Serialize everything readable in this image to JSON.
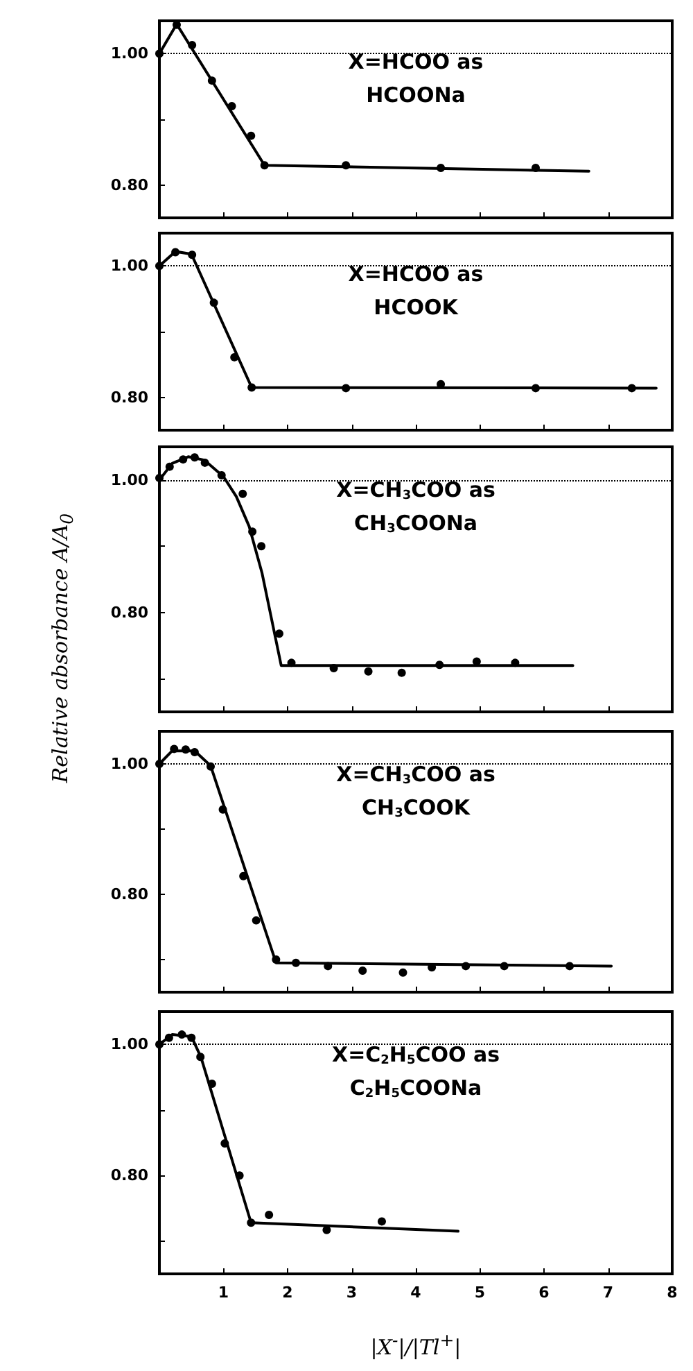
{
  "chart_data": [
    {
      "type": "scatter",
      "annotations": [
        "X=HCOO as",
        "HCOONa"
      ],
      "xlim": [
        0,
        8
      ],
      "xticks": [
        1,
        2,
        3,
        4,
        5,
        6,
        7,
        8
      ],
      "ylim": [
        0.75,
        1.05
      ],
      "yticks": [
        {
          "value": 0.8,
          "label": "0.80"
        },
        {
          "value": 0.9,
          "label": null
        },
        {
          "value": 1,
          "label": "1.00"
        }
      ],
      "tick_labels": "y",
      "ref_lines": [
        {
          "axis": "y",
          "value": 1,
          "color": "#000000",
          "line_style": "dotted"
        }
      ],
      "series": [
        {
          "color": "#000000",
          "marker": "circle",
          "x": [
            0,
            0.27,
            0.51,
            0.82,
            1.13,
            1.43,
            1.64,
            2.91,
            4.39,
            5.87
          ],
          "values": [
            1.0,
            1.044,
            1.013,
            0.959,
            0.92,
            0.875,
            0.83,
            0.83,
            0.826,
            0.826
          ]
        },
        {
          "type": "line",
          "color": "#000000",
          "marker": "none",
          "line_style": "solid",
          "x": [
            0,
            0.27,
            1.64,
            6.7
          ],
          "values": [
            1.0,
            1.045,
            0.83,
            0.821
          ]
        }
      ]
    },
    {
      "type": "scatter",
      "annotations": [
        "X=HCOO as",
        "HCOOK"
      ],
      "xlim": [
        0,
        8
      ],
      "xticks": [
        1,
        2,
        3,
        4,
        5,
        6,
        7,
        8
      ],
      "ylim": [
        0.75,
        1.05
      ],
      "yticks": [
        {
          "value": 0.8,
          "label": "0.80"
        },
        {
          "value": 0.9,
          "label": null
        },
        {
          "value": 1,
          "label": "1.00"
        }
      ],
      "tick_labels": "y",
      "ylabel": "Relative absorbance A/A$_{0}$",
      "ref_lines": [
        {
          "axis": "y",
          "value": 1,
          "color": "#000000",
          "line_style": "dotted"
        }
      ],
      "series": [
        {
          "color": "#000000",
          "marker": "circle",
          "x": [
            0,
            0.25,
            0.51,
            0.85,
            1.17,
            1.44,
            2.91,
            4.39,
            5.87,
            7.37
          ],
          "values": [
            1.0,
            1.021,
            1.017,
            0.944,
            0.861,
            0.815,
            0.814,
            0.82,
            0.814,
            0.814
          ]
        },
        {
          "type": "line",
          "color": "#000000",
          "marker": "none",
          "line_style": "solid",
          "x": [
            0,
            0.25,
            0.5,
            1.44,
            7.75
          ],
          "values": [
            1.0,
            1.022,
            1.018,
            0.815,
            0.814
          ]
        }
      ]
    },
    {
      "type": "scatter",
      "annotations": [
        "X=CH$_{3}$COO as",
        "CH$_{3}$COONa"
      ],
      "xlim": [
        0,
        8
      ],
      "xticks": [
        1,
        2,
        3,
        4,
        5,
        6,
        7,
        8
      ],
      "ylim": [
        0.65,
        1.05
      ],
      "yticks": [
        {
          "value": 0.7,
          "label": null
        },
        {
          "value": 0.8,
          "label": "0.80"
        },
        {
          "value": 0.9,
          "label": null
        },
        {
          "value": 1,
          "label": "1.00"
        }
      ],
      "tick_labels": "y",
      "ref_lines": [
        {
          "axis": "y",
          "value": 1,
          "color": "#000000",
          "line_style": "dotted"
        }
      ],
      "series": [
        {
          "color": "#000000",
          "marker": "circle",
          "x": [
            0,
            0.16,
            0.37,
            0.55,
            0.71,
            0.97,
            1.3,
            1.45,
            1.59,
            1.87,
            2.06,
            2.72,
            3.26,
            3.78,
            4.37,
            4.95,
            5.55
          ],
          "values": [
            1.003,
            1.02,
            1.031,
            1.034,
            1.026,
            1.007,
            0.979,
            0.922,
            0.9,
            0.768,
            0.724,
            0.716,
            0.711,
            0.709,
            0.721,
            0.726,
            0.724
          ]
        },
        {
          "type": "line",
          "color": "#000000",
          "marker": "none",
          "line_style": "solid",
          "x": [
            0,
            0.2,
            0.45,
            0.7,
            1.0,
            1.2,
            1.4,
            1.6,
            1.9,
            6.45
          ],
          "values": [
            1.0,
            1.025,
            1.035,
            1.03,
            1.005,
            0.975,
            0.93,
            0.86,
            0.72,
            0.72
          ]
        }
      ]
    },
    {
      "type": "scatter",
      "annotations": [
        "X=CH$_{3}$COO as",
        "CH$_{3}$COOK"
      ],
      "xlim": [
        0,
        8
      ],
      "xticks": [
        1,
        2,
        3,
        4,
        5,
        6,
        7,
        8
      ],
      "ylim": [
        0.65,
        1.05
      ],
      "yticks": [
        {
          "value": 0.7,
          "label": null
        },
        {
          "value": 0.8,
          "label": "0.80"
        },
        {
          "value": 0.9,
          "label": null
        },
        {
          "value": 1,
          "label": "1.00"
        }
      ],
      "tick_labels": "y",
      "ref_lines": [
        {
          "axis": "y",
          "value": 1,
          "color": "#000000",
          "line_style": "dotted"
        }
      ],
      "series": [
        {
          "color": "#000000",
          "marker": "circle",
          "x": [
            0,
            0.23,
            0.41,
            0.55,
            0.8,
            0.99,
            1.31,
            1.51,
            1.82,
            2.13,
            2.63,
            3.17,
            3.8,
            4.25,
            4.78,
            5.38,
            6.4
          ],
          "values": [
            1.0,
            1.023,
            1.022,
            1.018,
            0.996,
            0.93,
            0.828,
            0.76,
            0.7,
            0.695,
            0.69,
            0.683,
            0.68,
            0.688,
            0.69,
            0.69,
            0.69
          ]
        },
        {
          "type": "line",
          "color": "#000000",
          "marker": "none",
          "line_style": "solid",
          "x": [
            0,
            0.2,
            0.55,
            0.8,
            1.82,
            7.05
          ],
          "values": [
            1.0,
            1.02,
            1.02,
            0.997,
            0.695,
            0.69
          ]
        }
      ]
    },
    {
      "type": "scatter",
      "annotations": [
        "X=C$_{2}$H$_{5}$COO as",
        "C$_{2}$H$_{5}$COONa"
      ],
      "xlabel": "|X$^{-}$|/|Tl$^{+}$|",
      "xlim": [
        0,
        8
      ],
      "xticks": [
        1,
        2,
        3,
        4,
        5,
        6,
        7,
        8
      ],
      "ylim": [
        0.65,
        1.05
      ],
      "yticks": [
        {
          "value": 0.7,
          "label": null
        },
        {
          "value": 0.8,
          "label": "0.80"
        },
        {
          "value": 0.9,
          "label": null
        },
        {
          "value": 1,
          "label": "1.00"
        }
      ],
      "ref_lines": [
        {
          "axis": "y",
          "value": 1,
          "color": "#000000",
          "line_style": "dotted"
        }
      ],
      "series": [
        {
          "color": "#000000",
          "marker": "circle",
          "x": [
            0,
            0.15,
            0.35,
            0.5,
            0.64,
            0.82,
            1.02,
            1.25,
            1.43,
            1.71,
            2.61,
            3.47
          ],
          "values": [
            1.0,
            1.01,
            1.015,
            1.01,
            0.981,
            0.94,
            0.849,
            0.8,
            0.728,
            0.74,
            0.717,
            0.73
          ]
        },
        {
          "type": "line",
          "color": "#000000",
          "marker": "none",
          "line_style": "solid",
          "x": [
            0,
            0.2,
            0.5,
            0.65,
            1.43,
            4.66
          ],
          "values": [
            1.0,
            1.015,
            1.012,
            0.98,
            0.728,
            0.715
          ]
        }
      ]
    }
  ]
}
